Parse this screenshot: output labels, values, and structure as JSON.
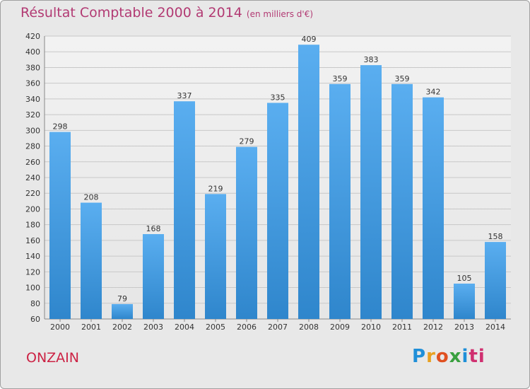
{
  "chart_data": {
    "type": "bar",
    "title": "Résultat Comptable 2000 à 2014",
    "subtitle": "(en milliers d'€)",
    "categories": [
      "2000",
      "2001",
      "2002",
      "2003",
      "2004",
      "2005",
      "2006",
      "2007",
      "2008",
      "2009",
      "2010",
      "2011",
      "2012",
      "2013",
      "2014"
    ],
    "values": [
      298,
      208,
      79,
      168,
      337,
      219,
      279,
      335,
      409,
      359,
      383,
      359,
      342,
      105,
      158
    ],
    "ylim": [
      60,
      420
    ],
    "ytick_step": 20,
    "xlabel": "",
    "ylabel": "",
    "grid": true,
    "bar_color": "#4a9fe0"
  },
  "place_label": "ONZAIN",
  "logo": {
    "letters": [
      "P",
      "r",
      "o",
      "x",
      "i",
      "ti"
    ]
  }
}
